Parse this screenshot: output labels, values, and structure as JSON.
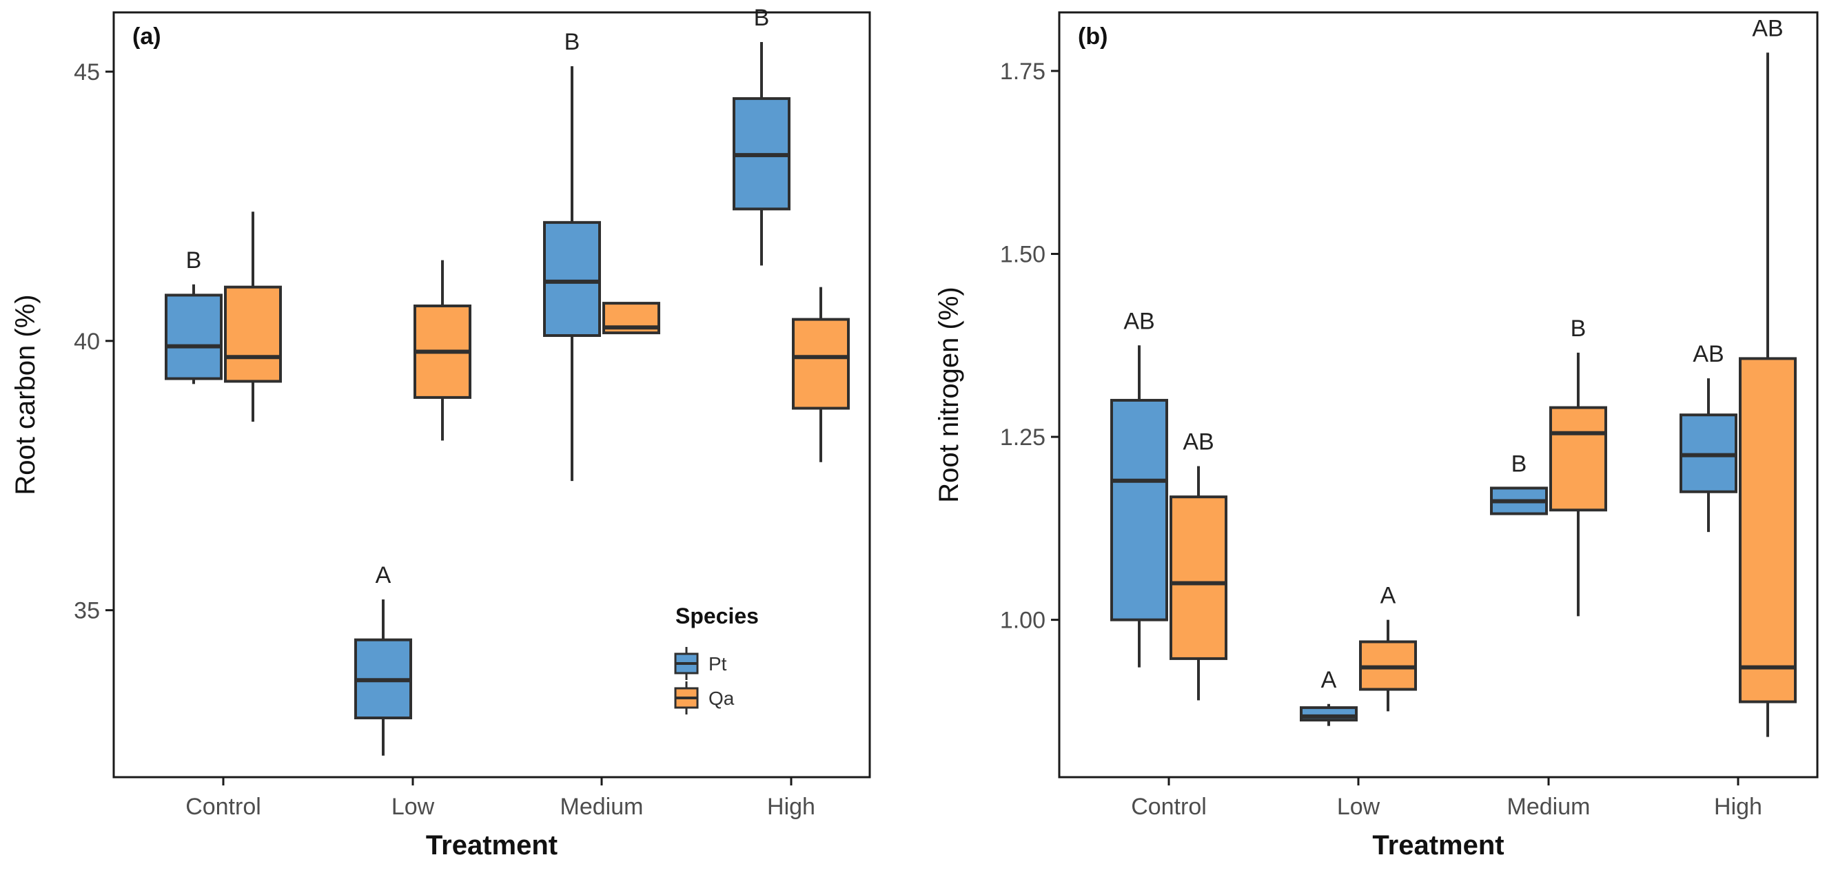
{
  "colors": {
    "Pt": "#5b9bd0",
    "Qa": "#fca454",
    "stroke": "#2f2f2f",
    "frame": "#1a1a1a"
  },
  "chart_data": [
    {
      "type": "box",
      "panel_label": "(a)",
      "xlabel": "Treatment",
      "ylabel": "Root carbon (%)",
      "categories": [
        "Control",
        "Low",
        "Medium",
        "High"
      ],
      "ylim": [
        31.9,
        46.1
      ],
      "yticks": [
        35,
        40,
        45
      ],
      "ytick_labels": [
        "35",
        "40",
        "45"
      ],
      "legend": {
        "title": "Species",
        "position": "bottom-right",
        "entries": [
          "Pt",
          "Qa"
        ]
      },
      "series": [
        {
          "name": "Pt",
          "boxes": [
            {
              "min": 39.2,
              "q1": 39.3,
              "median": 39.9,
              "q3": 40.85,
              "max": 41.05
            },
            {
              "min": 32.3,
              "q1": 33.0,
              "median": 33.7,
              "q3": 34.45,
              "max": 35.2
            },
            {
              "min": 37.4,
              "q1": 40.1,
              "median": 41.1,
              "q3": 42.2,
              "max": 45.1
            },
            {
              "min": 41.4,
              "q1": 42.45,
              "median": 43.45,
              "q3": 44.5,
              "max": 45.55
            }
          ],
          "letters": [
            "B",
            "A",
            "B",
            "B"
          ]
        },
        {
          "name": "Qa",
          "boxes": [
            {
              "min": 38.5,
              "q1": 39.25,
              "median": 39.7,
              "q3": 41.0,
              "max": 42.4
            },
            {
              "min": 38.15,
              "q1": 38.95,
              "median": 39.8,
              "q3": 40.65,
              "max": 41.5
            },
            {
              "min": 40.15,
              "q1": 40.15,
              "median": 40.25,
              "q3": 40.7,
              "max": 40.7
            },
            {
              "min": 37.75,
              "q1": 38.75,
              "median": 39.7,
              "q3": 40.4,
              "max": 41.0
            }
          ],
          "letters": [
            "",
            "",
            "",
            ""
          ]
        }
      ]
    },
    {
      "type": "box",
      "panel_label": "(b)",
      "xlabel": "Treatment",
      "ylabel": "Root nitrogen (%)",
      "categories": [
        "Control",
        "Low",
        "Medium",
        "High"
      ],
      "ylim": [
        0.785,
        1.83
      ],
      "yticks": [
        1.0,
        1.25,
        1.5,
        1.75
      ],
      "ytick_labels": [
        "1.00",
        "1.25",
        "1.50",
        "1.75"
      ],
      "series": [
        {
          "name": "Pt",
          "boxes": [
            {
              "min": 0.935,
              "q1": 1.0,
              "median": 1.19,
              "q3": 1.3,
              "max": 1.375
            },
            {
              "min": 0.855,
              "q1": 0.863,
              "median": 0.868,
              "q3": 0.88,
              "max": 0.885
            },
            {
              "min": 1.145,
              "q1": 1.145,
              "median": 1.162,
              "q3": 1.18,
              "max": 1.18
            },
            {
              "min": 1.12,
              "q1": 1.175,
              "median": 1.225,
              "q3": 1.28,
              "max": 1.33
            }
          ],
          "letters": [
            "AB",
            "A",
            "B",
            "AB"
          ]
        },
        {
          "name": "Qa",
          "boxes": [
            {
              "min": 0.89,
              "q1": 0.947,
              "median": 1.05,
              "q3": 1.168,
              "max": 1.21
            },
            {
              "min": 0.875,
              "q1": 0.905,
              "median": 0.935,
              "q3": 0.97,
              "max": 1.0
            },
            {
              "min": 1.005,
              "q1": 1.15,
              "median": 1.255,
              "q3": 1.29,
              "max": 1.365
            },
            {
              "min": 0.84,
              "q1": 0.888,
              "median": 0.935,
              "q3": 1.357,
              "max": 1.775
            }
          ],
          "letters": [
            "AB",
            "A",
            "B",
            "AB"
          ]
        }
      ]
    }
  ]
}
